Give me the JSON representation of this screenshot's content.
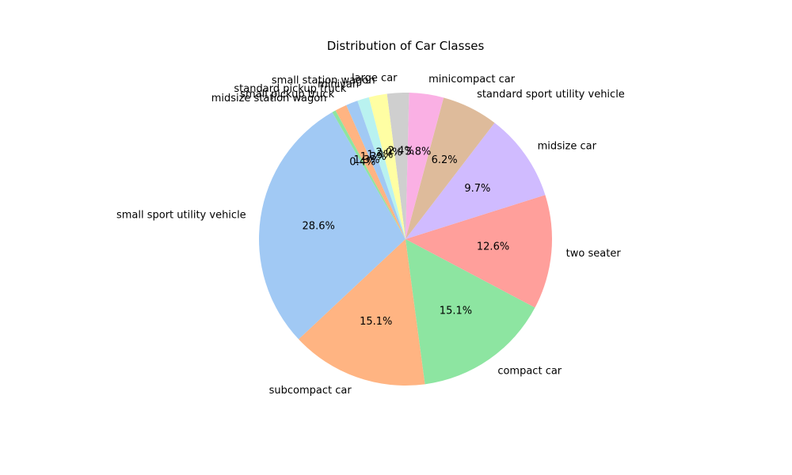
{
  "chart_data": {
    "type": "pie",
    "title": "Distribution of Car Classes",
    "start_angle_deg": 120,
    "direction": "counterclockwise",
    "slices": [
      {
        "label": "small sport utility vehicle",
        "value": 28.6,
        "pct_label": "28.6%",
        "color": "#a1c9f4"
      },
      {
        "label": "subcompact car",
        "value": 15.1,
        "pct_label": "15.1%",
        "color": "#ffb482"
      },
      {
        "label": "compact car",
        "value": 15.1,
        "pct_label": "15.1%",
        "color": "#8de5a1"
      },
      {
        "label": "two seater",
        "value": 12.6,
        "pct_label": "12.6%",
        "color": "#ff9f9b"
      },
      {
        "label": "midsize car",
        "value": 9.7,
        "pct_label": "9.7%",
        "color": "#d0bbff"
      },
      {
        "label": "standard sport utility vehicle",
        "value": 6.2,
        "pct_label": "6.2%",
        "color": "#debb9b"
      },
      {
        "label": "minicompact car",
        "value": 3.8,
        "pct_label": "3.8%",
        "color": "#fab0e4"
      },
      {
        "label": "large car",
        "value": 2.4,
        "pct_label": "2.4%",
        "color": "#cfcfcf"
      },
      {
        "label": "small station wagon",
        "value": 2.0,
        "pct_label": "2.0%",
        "color": "#fffea3"
      },
      {
        "label": "minivan",
        "value": 1.3,
        "pct_label": "1.3%",
        "color": "#b9f2f0"
      },
      {
        "label": "standard pickup truck",
        "value": 1.3,
        "pct_label": "1.3%",
        "color": "#a1c9f4"
      },
      {
        "label": "small pickup truck",
        "value": 1.3,
        "pct_label": "1.3%",
        "color": "#ffb482"
      },
      {
        "label": "midsize station wagon",
        "value": 0.4,
        "pct_label": "0.4%",
        "color": "#8de5a1"
      }
    ]
  }
}
